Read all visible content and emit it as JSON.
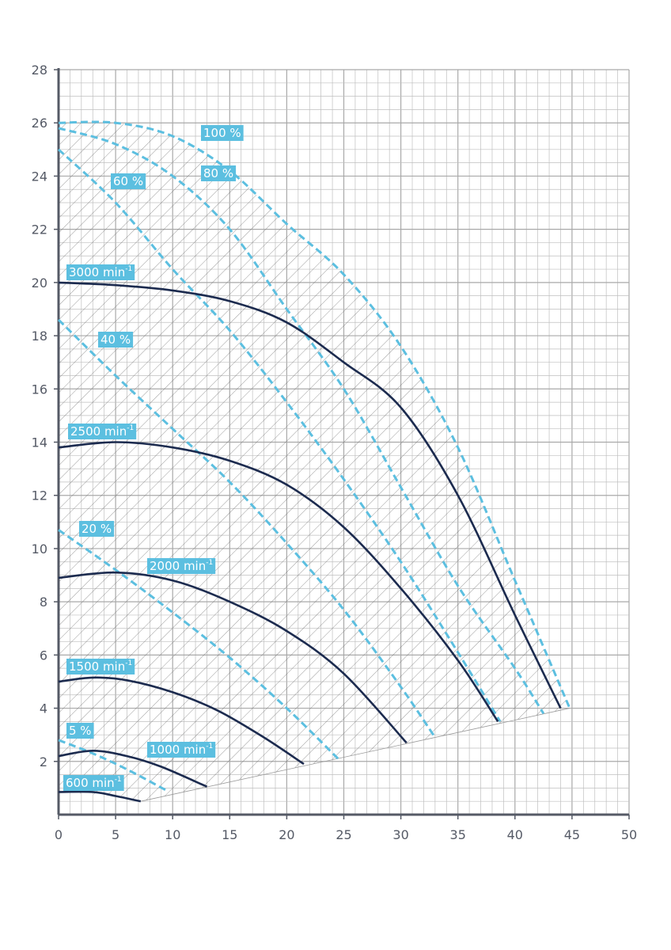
{
  "chart_data": {
    "type": "line",
    "title": "",
    "xlabel": "",
    "ylabel": "",
    "xlim": [
      0,
      50
    ],
    "ylim": [
      0,
      28
    ],
    "x_ticks": [
      "0",
      "5",
      "10",
      "15",
      "20",
      "25",
      "30",
      "35",
      "40",
      "45",
      "50"
    ],
    "y_ticks": [
      "2",
      "4",
      "6",
      "8",
      "10",
      "12",
      "14",
      "16",
      "18",
      "20",
      "22",
      "24",
      "26",
      "28"
    ],
    "grid": true,
    "hatched_region": true,
    "colors": {
      "speed_curves": "#1c2b4f",
      "efficiency_curves": "#5cbfe0",
      "label_bg": "#5cbfe0",
      "grid": "#bfbfbf",
      "axis": "#555a66"
    },
    "speed_curves": [
      {
        "label": "3000 min",
        "sup": "-1",
        "x": [
          0,
          5,
          10,
          15,
          20,
          25,
          30,
          35,
          40,
          44
        ],
        "y": [
          20,
          19.9,
          19.7,
          19.3,
          18.5,
          17,
          15.3,
          12,
          7.5,
          4
        ]
      },
      {
        "label": "2500 min",
        "sup": "-1",
        "x": [
          0,
          5,
          10,
          15,
          20,
          25,
          30,
          35,
          38.5
        ],
        "y": [
          13.8,
          14,
          13.8,
          13.3,
          12.4,
          10.8,
          8.5,
          5.8,
          3.5
        ]
      },
      {
        "label": "2000 min",
        "sup": "-1",
        "x": [
          0,
          5,
          10,
          15,
          20,
          25,
          30.5
        ],
        "y": [
          8.9,
          9.1,
          8.8,
          8,
          6.9,
          5.3,
          2.7
        ]
      },
      {
        "label": "1500 min",
        "sup": "-1",
        "x": [
          0,
          3,
          6,
          10,
          14,
          18,
          21.5
        ],
        "y": [
          5,
          5.15,
          5.05,
          4.6,
          3.9,
          2.9,
          1.9
        ]
      },
      {
        "label": "1000 min",
        "sup": "-1",
        "x": [
          0,
          3,
          6,
          9,
          13
        ],
        "y": [
          2.2,
          2.4,
          2.2,
          1.8,
          1.05
        ]
      },
      {
        "label": "600 min",
        "sup": "-1",
        "x": [
          0,
          3,
          5,
          7.2
        ],
        "y": [
          0.85,
          0.85,
          0.7,
          0.5
        ]
      }
    ],
    "efficiency_curves": [
      {
        "label": "100 %",
        "x": [
          0,
          5,
          10,
          15,
          20,
          25,
          30,
          35,
          40,
          44.8
        ],
        "y": [
          26,
          26,
          25.5,
          24.2,
          22.2,
          20.3,
          17.6,
          13.8,
          8.8,
          4
        ]
      },
      {
        "label": "80 %",
        "x": [
          0,
          5,
          10,
          15,
          20,
          25,
          30,
          35,
          40,
          42.5
        ],
        "y": [
          25.8,
          25.2,
          24,
          22,
          19,
          16,
          12.3,
          8.6,
          5.5,
          3.8
        ]
      },
      {
        "label": "60 %",
        "x": [
          0,
          5,
          10,
          15,
          20,
          25,
          30,
          35,
          38.7
        ],
        "y": [
          25,
          23,
          20.5,
          18.2,
          15.5,
          12.6,
          9.5,
          6.1,
          3.5
        ]
      },
      {
        "label": "40 %",
        "x": [
          0,
          5,
          10,
          15,
          20,
          25,
          30,
          33
        ],
        "y": [
          18.6,
          16.5,
          14.5,
          12.5,
          10.2,
          7.7,
          4.8,
          2.9
        ]
      },
      {
        "label": "20 %",
        "x": [
          0,
          5,
          10,
          15,
          20,
          24.5
        ],
        "y": [
          10.7,
          9.2,
          7.6,
          5.9,
          4,
          2.1
        ]
      },
      {
        "label": "5 %",
        "x": [
          0,
          3,
          6,
          9.5
        ],
        "y": [
          2.8,
          2.3,
          1.7,
          0.9
        ]
      }
    ]
  }
}
